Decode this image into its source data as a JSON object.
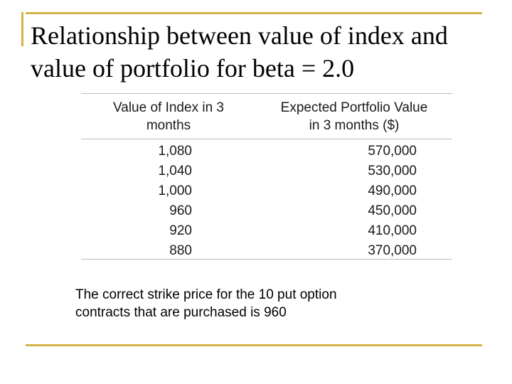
{
  "slide": {
    "title_lines": [
      "Relationship between value of index and",
      "value of portfolio for beta = 2.0"
    ],
    "accent_color": "#d4b44a"
  },
  "table": {
    "headers": [
      [
        "Value of Index in 3",
        "months"
      ],
      [
        "Expected Portfolio Value",
        "in 3 months ($)"
      ]
    ],
    "rows": [
      [
        "1,080",
        "570,000"
      ],
      [
        "1,040",
        "530,000"
      ],
      [
        "1,000",
        "490,000"
      ],
      [
        "960",
        "450,000"
      ],
      [
        "920",
        "410,000"
      ],
      [
        "880",
        "370,000"
      ]
    ]
  },
  "note": {
    "lines": [
      "The correct strike price for the 10 put option",
      "contracts that are purchased is 960"
    ]
  }
}
